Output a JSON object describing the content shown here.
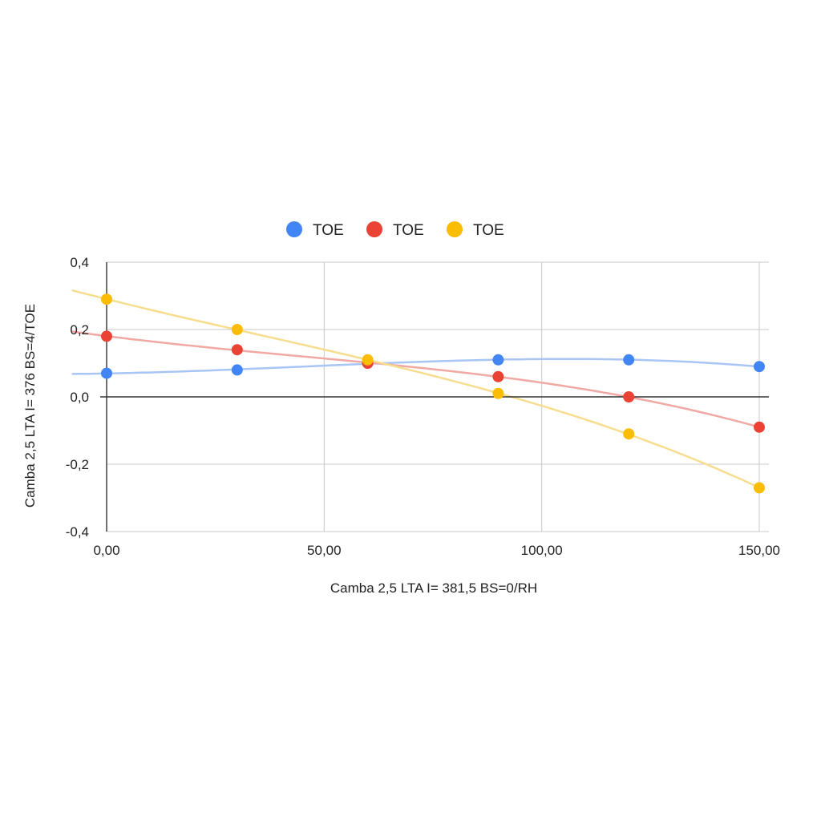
{
  "chart_data": {
    "type": "scatter",
    "title": "",
    "xlabel": "Camba 2,5 LTA I= 381,5 BS=0/RH",
    "ylabel": "Camba 2,5 LTA I= 376 BS=4/TOE",
    "xlim": [
      0,
      150
    ],
    "ylim": [
      -0.4,
      0.4
    ],
    "x_ticks": [
      0,
      50,
      100,
      150
    ],
    "x_tick_labels": [
      "0,00",
      "50,00",
      "100,00",
      "150,00"
    ],
    "y_ticks": [
      -0.4,
      -0.2,
      0.0,
      0.2,
      0.4
    ],
    "y_tick_labels": [
      "-0,4",
      "-0,2",
      "0,0",
      "0,2",
      "0,4"
    ],
    "grid": true,
    "trendline": "polynomial",
    "legend_position": "top",
    "x": [
      0,
      30,
      60,
      90,
      120,
      150
    ],
    "series": [
      {
        "name": "TOE",
        "color": "#4285f4",
        "trend_color": "#a9c5f6",
        "values": [
          0.07,
          0.08,
          0.1,
          0.11,
          0.11,
          0.09
        ]
      },
      {
        "name": "TOE",
        "color": "#ea4335",
        "trend_color": "#f0a9a3",
        "values": [
          0.18,
          0.14,
          0.1,
          0.06,
          0.0,
          -0.09
        ]
      },
      {
        "name": "TOE",
        "color": "#fbbc04",
        "trend_color": "#f7dd8f",
        "values": [
          0.29,
          0.2,
          0.11,
          0.01,
          -0.11,
          -0.27
        ]
      }
    ]
  }
}
